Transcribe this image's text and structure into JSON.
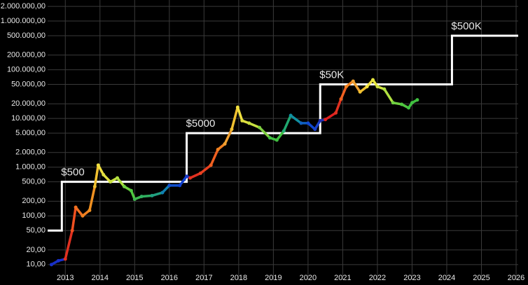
{
  "chart_data": {
    "type": "line",
    "log_y": true,
    "grid": true,
    "xlim": [
      2012.49,
      2026.06
    ],
    "ylim": [
      4.8,
      2700000
    ],
    "xticks": [
      2013,
      2014,
      2015,
      2016,
      2017,
      2018,
      2019,
      2020,
      2021,
      2022,
      2023,
      2024,
      2025,
      2026
    ],
    "yticks": [
      {
        "value": 2000000,
        "label": "2.000.000,00"
      },
      {
        "value": 1000000,
        "label": "1.000.000,00"
      },
      {
        "value": 500000,
        "label": "500.000,00"
      },
      {
        "value": 200000,
        "label": "200.000,00"
      },
      {
        "value": 100000,
        "label": "100.000,00"
      },
      {
        "value": 50000,
        "label": "50.000,00"
      },
      {
        "value": 20000,
        "label": "20.000,00"
      },
      {
        "value": 10000,
        "label": "10.000,00"
      },
      {
        "value": 5000,
        "label": "5.000,00"
      },
      {
        "value": 2000,
        "label": "2.000,00"
      },
      {
        "value": 1000,
        "label": "1.000,00"
      },
      {
        "value": 500,
        "label": "500,00"
      },
      {
        "value": 200,
        "label": "200,00"
      },
      {
        "value": 100,
        "label": "100,00"
      },
      {
        "value": 50,
        "label": "50,00"
      },
      {
        "value": 20,
        "label": "20,00"
      },
      {
        "value": 10,
        "label": "10,00"
      }
    ],
    "annotations": [
      {
        "text": "$500",
        "x": 2012.9,
        "y": 500
      },
      {
        "text": "$5000",
        "x": 2016.5,
        "y": 5000
      },
      {
        "text": "$50K",
        "x": 2020.35,
        "y": 50000
      },
      {
        "text": "$500K",
        "x": 2024.15,
        "y": 500000
      }
    ],
    "series": [
      {
        "color": "#ffffff",
        "x": [
          2012.49,
          2012.9,
          2012.9,
          2016.5,
          2016.5,
          2020.35,
          2020.35,
          2024.15,
          2024.15,
          2026.06
        ],
        "values": [
          50,
          50,
          500,
          500,
          5000,
          5000,
          50000,
          50000,
          500000,
          500000
        ]
      },
      {
        "x": [
          2012.6,
          2012.8,
          2013.0,
          2013.2,
          2013.3,
          2013.5,
          2013.7,
          2013.85,
          2013.95,
          2014.1,
          2014.3,
          2014.5,
          2014.7,
          2014.9,
          2015.0,
          2015.2,
          2015.5,
          2015.8,
          2016.0,
          2016.3,
          2016.5,
          2016.6,
          2016.9,
          2017.2,
          2017.4,
          2017.6,
          2017.8,
          2017.97,
          2018.1,
          2018.3,
          2018.6,
          2018.9,
          2019.1,
          2019.3,
          2019.5,
          2019.8,
          2020.0,
          2020.2,
          2020.35,
          2020.5,
          2020.8,
          2020.95,
          2021.1,
          2021.3,
          2021.5,
          2021.7,
          2021.87,
          2022.0,
          2022.2,
          2022.45,
          2022.7,
          2022.9,
          2023.0,
          2023.15
        ],
        "values": [
          10,
          12,
          13,
          50,
          150,
          100,
          130,
          400,
          1100,
          700,
          500,
          600,
          400,
          330,
          220,
          250,
          260,
          300,
          420,
          420,
          650,
          600,
          750,
          1100,
          2300,
          3000,
          6000,
          17000,
          9000,
          8000,
          6500,
          4000,
          3600,
          5500,
          11500,
          8000,
          8000,
          6000,
          9000,
          9500,
          13000,
          25000,
          45000,
          58000,
          35000,
          45000,
          62000,
          45000,
          40000,
          21000,
          19500,
          16500,
          21000,
          24000
        ],
        "colors": [
          "#1830c8",
          "#1830c8",
          "#e03020",
          "#f05020",
          "#f07020",
          "#f08020",
          "#f09020",
          "#f0c030",
          "#f0e040",
          "#e0e040",
          "#c8e040",
          "#b0e040",
          "#70d040",
          "#50c840",
          "#40b850",
          "#30b060",
          "#20a080",
          "#1080b0",
          "#1050d0",
          "#1040d0",
          "#1838c8",
          "#e03020",
          "#e84020",
          "#f06020",
          "#f08020",
          "#f0a030",
          "#f0c030",
          "#f0e040",
          "#e0e040",
          "#c8e040",
          "#80d040",
          "#40c040",
          "#40c040",
          "#20a870",
          "#1090a0",
          "#1060c0",
          "#1048d0",
          "#1840c8",
          "#2030b0",
          "#e02020",
          "#e03020",
          "#f06020",
          "#f08020",
          "#f0a030",
          "#f0c030",
          "#f0e040",
          "#e8e840",
          "#d0e040",
          "#b0e040",
          "#70d040",
          "#50c840",
          "#40c040",
          "#40c040",
          "#40c040"
        ]
      }
    ]
  }
}
